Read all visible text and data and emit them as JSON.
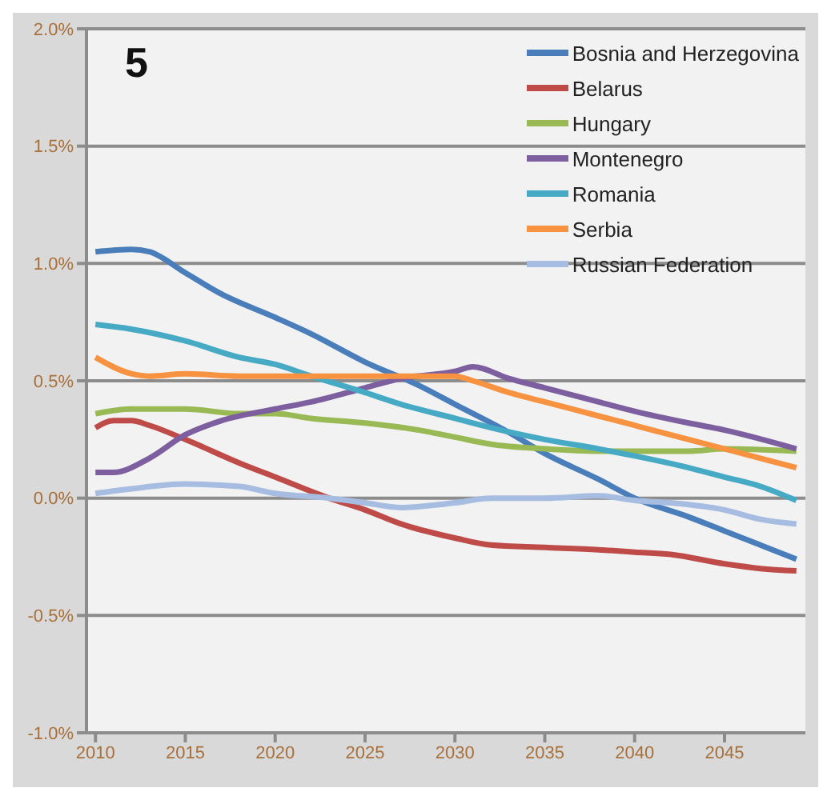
{
  "chart_data": {
    "type": "line",
    "annotations": [
      "5"
    ],
    "xlim": [
      2009.5,
      2049.5
    ],
    "xticks": [
      2010,
      2015,
      2020,
      2025,
      2030,
      2035,
      2040,
      2045
    ],
    "ylim": [
      -1.0,
      2.0
    ],
    "yticks": [
      {
        "value": -1.0,
        "label": "-1.0%"
      },
      {
        "value": -0.5,
        "label": "-0.5%"
      },
      {
        "value": 0,
        "label": "0.0%"
      },
      {
        "value": 0.5,
        "label": "0.5%"
      },
      {
        "value": 1.0,
        "label": "1.0%"
      },
      {
        "value": 1.5,
        "label": "1.5%"
      },
      {
        "value": 2.0,
        "label": "2.0%"
      }
    ],
    "grid": "y",
    "legend": "top right",
    "marker": "none",
    "line_style": "solid",
    "series": [
      {
        "name": "Bosnia and Herzegovina",
        "color": "#4a7ebb",
        "x": [
          2010,
          2012,
          2013,
          2015,
          2017,
          2020,
          2022,
          2025,
          2028,
          2030,
          2033,
          2035,
          2038,
          2040,
          2043,
          2045,
          2047,
          2049
        ],
        "values": [
          1.05,
          1.06,
          1.05,
          0.96,
          0.87,
          0.77,
          0.7,
          0.58,
          0.48,
          0.4,
          0.28,
          0.19,
          0.08,
          0.0,
          -0.08,
          -0.14,
          -0.2,
          -0.26
        ]
      },
      {
        "name": "Belarus",
        "color": "#be4b48",
        "x": [
          2010,
          2011,
          2012,
          2013,
          2015,
          2018,
          2020,
          2023,
          2025,
          2027,
          2030,
          2032,
          2035,
          2038,
          2040,
          2042,
          2045,
          2047,
          2049
        ],
        "values": [
          0.3,
          0.33,
          0.33,
          0.31,
          0.25,
          0.15,
          0.09,
          0.0,
          -0.05,
          -0.11,
          -0.17,
          -0.2,
          -0.21,
          -0.22,
          -0.23,
          -0.24,
          -0.28,
          -0.3,
          -0.31
        ]
      },
      {
        "name": "Hungary",
        "color": "#98b954",
        "x": [
          2010,
          2012,
          2015,
          2018,
          2020,
          2022,
          2025,
          2028,
          2030,
          2032,
          2035,
          2038,
          2040,
          2043,
          2045,
          2049
        ],
        "values": [
          0.36,
          0.38,
          0.38,
          0.36,
          0.36,
          0.34,
          0.32,
          0.29,
          0.26,
          0.23,
          0.21,
          0.2,
          0.2,
          0.2,
          0.21,
          0.2
        ]
      },
      {
        "name": "Montenegro",
        "color": "#7d5fa0",
        "x": [
          2010,
          2011,
          2013,
          2015,
          2017,
          2020,
          2022,
          2025,
          2027,
          2030,
          2031,
          2033,
          2035,
          2038,
          2040,
          2043,
          2045,
          2049
        ],
        "values": [
          0.11,
          0.11,
          0.17,
          0.27,
          0.33,
          0.38,
          0.41,
          0.47,
          0.51,
          0.54,
          0.56,
          0.51,
          0.47,
          0.41,
          0.37,
          0.32,
          0.29,
          0.21
        ]
      },
      {
        "name": "Romania",
        "color": "#46aac5",
        "x": [
          2010,
          2012,
          2015,
          2018,
          2020,
          2022,
          2025,
          2027,
          2030,
          2032,
          2035,
          2038,
          2040,
          2043,
          2045,
          2047,
          2049
        ],
        "values": [
          0.74,
          0.72,
          0.67,
          0.6,
          0.57,
          0.52,
          0.45,
          0.4,
          0.34,
          0.3,
          0.25,
          0.21,
          0.18,
          0.13,
          0.09,
          0.05,
          -0.01
        ]
      },
      {
        "name": "Serbia",
        "color": "#f69240",
        "x": [
          2010,
          2012,
          2013,
          2015,
          2018,
          2020,
          2025,
          2030,
          2031,
          2033,
          2035,
          2038,
          2040,
          2043,
          2045,
          2047,
          2049
        ],
        "values": [
          0.6,
          0.53,
          0.52,
          0.53,
          0.52,
          0.52,
          0.52,
          0.52,
          0.5,
          0.45,
          0.41,
          0.35,
          0.31,
          0.25,
          0.21,
          0.17,
          0.13
        ]
      },
      {
        "name": "Russian Federation",
        "color": "#a6bce0",
        "x": [
          2010,
          2012,
          2015,
          2018,
          2020,
          2023,
          2025,
          2027,
          2030,
          2032,
          2035,
          2038,
          2040,
          2042,
          2045,
          2047,
          2049
        ],
        "values": [
          0.02,
          0.04,
          0.06,
          0.05,
          0.02,
          0.0,
          -0.02,
          -0.04,
          -0.02,
          0.0,
          0.0,
          0.01,
          -0.01,
          -0.02,
          -0.05,
          -0.09,
          -0.11
        ]
      }
    ]
  }
}
